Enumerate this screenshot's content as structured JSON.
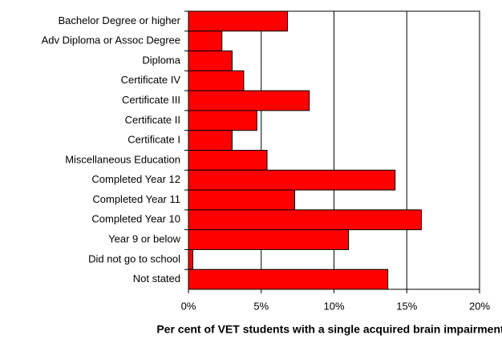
{
  "chart_data": {
    "type": "barh",
    "xlabel": "Per cent of VET students with a single acquired brain impairment",
    "categories": [
      "Bachelor Degree or higher",
      "Adv Diploma or Assoc Degree",
      "Diploma",
      "Certificate IV",
      "Certificate III",
      "Certificate II",
      "Certificate I",
      "Miscellaneous Education",
      "Completed Year 12",
      "Completed Year 11",
      "Completed Year 10",
      "Year 9 or below",
      "Did not go to school",
      "Not stated"
    ],
    "values": [
      6.8,
      2.3,
      3.0,
      3.8,
      8.3,
      4.7,
      3.0,
      5.4,
      14.2,
      7.3,
      16.0,
      11.0,
      0.3,
      13.7
    ],
    "color": "#ff0000",
    "xlim": [
      0,
      20
    ],
    "xticks": [
      {
        "value": 0,
        "label": "0%"
      },
      {
        "value": 5,
        "label": "5%"
      },
      {
        "value": 10,
        "label": "10%"
      },
      {
        "value": 15,
        "label": "15%"
      },
      {
        "value": 20,
        "label": "20%"
      }
    ],
    "grid": true
  }
}
